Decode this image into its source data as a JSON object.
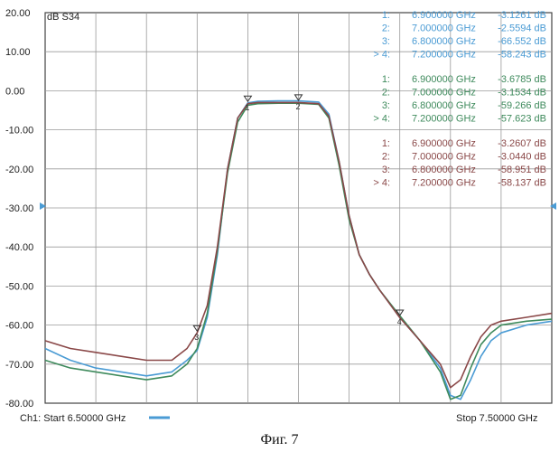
{
  "caption": "Фиг. 7",
  "chart_data": {
    "type": "line",
    "measurement_label": "dB S34",
    "start_label": "Ch1: Start  6.50000 GHz",
    "stop_label": "Stop  7.50000 GHz",
    "xlim": [
      6.5,
      7.5
    ],
    "ylim": [
      -80,
      20
    ],
    "grid": true,
    "y_tick_labels": [
      "20.00",
      "10.00",
      "0.00",
      "-10.00",
      "-20.00",
      "-30.00",
      "-40.00",
      "-50.00",
      "-60.00",
      "-70.00",
      "-80.00"
    ],
    "colors": {
      "series1": "#4a9bd4",
      "series2": "#3e8a5c",
      "series3": "#8a4848"
    },
    "marker_tables": [
      {
        "color": "#4a9bd4",
        "rows": [
          {
            "index": "1:",
            "freq": "6.900000 GHz",
            "value": "-3.1261 dB"
          },
          {
            "index": "2:",
            "freq": "7.000000 GHz",
            "value": "-2.5594 dB"
          },
          {
            "index": "3:",
            "freq": "6.800000 GHz",
            "value": "-66.552 dB"
          },
          {
            "index": "> 4:",
            "freq": "7.200000 GHz",
            "value": "-58.243 dB"
          }
        ]
      },
      {
        "color": "#3e8a5c",
        "rows": [
          {
            "index": "1:",
            "freq": "6.900000 GHz",
            "value": "-3.6785 dB"
          },
          {
            "index": "2:",
            "freq": "7.000000 GHz",
            "value": "-3.1534 dB"
          },
          {
            "index": "3:",
            "freq": "6.800000 GHz",
            "value": "-59.266 dB"
          },
          {
            "index": "> 4:",
            "freq": "7.200000 GHz",
            "value": "-57.623 dB"
          }
        ]
      },
      {
        "color": "#8a4848",
        "rows": [
          {
            "index": "1:",
            "freq": "6.900000 GHz",
            "value": "-3.2607 dB"
          },
          {
            "index": "2:",
            "freq": "7.000000 GHz",
            "value": "-3.0440 dB"
          },
          {
            "index": "3:",
            "freq": "6.800000 GHz",
            "value": "-58.951 dB"
          },
          {
            "index": "> 4:",
            "freq": "7.200000 GHz",
            "value": "-58.137 dB"
          }
        ]
      }
    ],
    "series": [
      {
        "color": "#4a9bd4",
        "x": [
          6.5,
          6.55,
          6.6,
          6.65,
          6.7,
          6.75,
          6.78,
          6.8,
          6.82,
          6.84,
          6.86,
          6.88,
          6.9,
          6.92,
          6.96,
          7.0,
          7.04,
          7.06,
          7.08,
          7.1,
          7.12,
          7.14,
          7.16,
          7.2,
          7.24,
          7.28,
          7.3,
          7.32,
          7.34,
          7.36,
          7.38,
          7.4,
          7.45,
          7.5
        ],
        "y": [
          -66,
          -69,
          -71,
          -72,
          -73,
          -72,
          -69,
          -66.5,
          -58,
          -42,
          -20,
          -7,
          -3.1,
          -2.7,
          -2.6,
          -2.6,
          -2.9,
          -6,
          -18,
          -32,
          -42,
          -47,
          -51,
          -58,
          -64,
          -71,
          -78,
          -79,
          -74,
          -68,
          -64,
          -62,
          -60,
          -59
        ]
      },
      {
        "color": "#3e8a5c",
        "x": [
          6.5,
          6.55,
          6.6,
          6.65,
          6.7,
          6.75,
          6.78,
          6.8,
          6.82,
          6.84,
          6.86,
          6.88,
          6.9,
          6.92,
          6.96,
          7.0,
          7.04,
          7.06,
          7.08,
          7.1,
          7.12,
          7.14,
          7.16,
          7.2,
          7.24,
          7.28,
          7.3,
          7.32,
          7.34,
          7.36,
          7.38,
          7.4,
          7.45,
          7.5
        ],
        "y": [
          -69,
          -71,
          -72,
          -73,
          -74,
          -73,
          -70,
          -66,
          -57,
          -41,
          -21,
          -8,
          -3.7,
          -3.3,
          -3.2,
          -3.2,
          -3.5,
          -7,
          -19,
          -33,
          -42,
          -47,
          -51,
          -57.6,
          -64,
          -72,
          -79,
          -78,
          -71,
          -65,
          -62,
          -60,
          -59,
          -58.5
        ]
      },
      {
        "color": "#8a4848",
        "x": [
          6.5,
          6.55,
          6.6,
          6.65,
          6.7,
          6.75,
          6.78,
          6.8,
          6.82,
          6.84,
          6.86,
          6.88,
          6.9,
          6.92,
          6.96,
          7.0,
          7.04,
          7.06,
          7.08,
          7.1,
          7.12,
          7.14,
          7.16,
          7.2,
          7.24,
          7.28,
          7.3,
          7.32,
          7.34,
          7.36,
          7.38,
          7.4,
          7.45,
          7.5
        ],
        "y": [
          -64,
          -66,
          -67,
          -68,
          -69,
          -69,
          -66,
          -62,
          -55,
          -40,
          -20,
          -7,
          -3.3,
          -3.0,
          -3.0,
          -3.0,
          -3.3,
          -6.5,
          -18,
          -32,
          -42,
          -47,
          -51,
          -58.1,
          -64,
          -70,
          -76,
          -74,
          -68,
          -63,
          -60,
          -59,
          -58,
          -57
        ]
      }
    ],
    "markers": [
      {
        "label": "1",
        "x": 6.9,
        "y": -3.2
      },
      {
        "label": "2",
        "x": 7.0,
        "y": -2.9
      },
      {
        "label": "3",
        "x": 6.8,
        "y": -62
      },
      {
        "label": "4",
        "x": 7.2,
        "y": -58
      }
    ]
  }
}
